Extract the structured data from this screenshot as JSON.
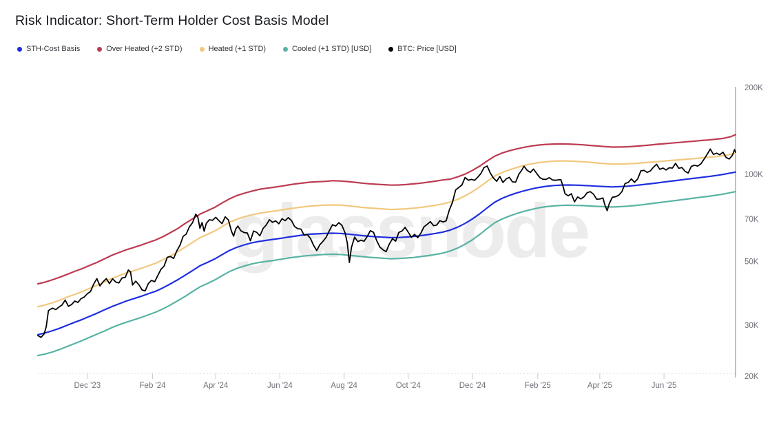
{
  "title": "Risk Indicator: Short-Term Holder Cost Basis Model",
  "watermark": "glassnode",
  "legend": {
    "items": [
      {
        "label": "STH-Cost Basis",
        "color": "#1f2fdf"
      },
      {
        "label": "Over Heated (+2 STD)",
        "color": "#bd3b52"
      },
      {
        "label": "Heated (+1 STD)",
        "color": "#f2c87e"
      },
      {
        "label": "Cooled (+1 STD) [USD]",
        "color": "#58b3a4"
      },
      {
        "label": "BTC: Price [USD]",
        "color": "#000000"
      }
    ]
  },
  "chart_data": {
    "type": "line",
    "title": "Risk Indicator: Short-Term Holder Cost Basis Model",
    "y_scale": "log",
    "y_unit": "USD",
    "ylim_thousands": [
      20,
      200
    ],
    "x_range_days": [
      0,
      663
    ],
    "x_start": "mid-Oct 2023",
    "x_end": "early Aug 2025",
    "grid": "none",
    "legend_position": "top-left",
    "x_ticks": [
      {
        "label": "Dec '23",
        "day": 47
      },
      {
        "label": "Feb '24",
        "day": 109
      },
      {
        "label": "Apr '24",
        "day": 169
      },
      {
        "label": "Jun '24",
        "day": 230
      },
      {
        "label": "Aug '24",
        "day": 291
      },
      {
        "label": "Oct '24",
        "day": 352
      },
      {
        "label": "Dec '24",
        "day": 413
      },
      {
        "label": "Feb '25",
        "day": 475
      },
      {
        "label": "Apr '25",
        "day": 534
      },
      {
        "label": "Jun '25",
        "day": 595
      }
    ],
    "y_ticks": [
      {
        "label": "20K",
        "value": 20
      },
      {
        "label": "30K",
        "value": 30
      },
      {
        "label": "50K",
        "value": 50
      },
      {
        "label": "70K",
        "value": 70
      },
      {
        "label": "100K",
        "value": 100
      },
      {
        "label": "200K",
        "value": 200
      }
    ],
    "x_weekly": [
      0,
      7,
      14,
      21,
      28,
      35,
      42,
      49,
      56,
      63,
      70,
      77,
      84,
      91,
      98,
      105,
      112,
      119,
      126,
      133,
      140,
      147,
      154,
      161,
      168,
      175,
      182,
      189,
      196,
      203,
      210,
      217,
      224,
      231,
      238,
      245,
      252,
      259,
      266,
      273,
      280,
      287,
      294,
      301,
      308,
      315,
      322,
      329,
      336,
      343,
      350,
      357,
      364,
      371,
      378,
      385,
      392,
      399,
      406,
      413,
      420,
      427,
      434,
      441,
      448,
      455,
      462,
      469,
      476,
      483,
      490,
      497,
      504,
      511,
      518,
      525,
      532,
      539,
      546,
      553,
      560,
      567,
      574,
      581,
      588,
      595,
      602,
      609,
      616,
      623,
      630,
      637,
      644,
      651,
      658,
      663
    ],
    "series": [
      {
        "name": "Over Heated (+2 STD)",
        "color": "#bd3b52",
        "width": 2.2,
        "x_ref": "x_weekly",
        "y": [
          42.0,
          42.6,
          43.4,
          44.3,
          45.3,
          46.4,
          47.4,
          48.6,
          49.8,
          51.2,
          52.7,
          53.9,
          55.1,
          56.1,
          57.2,
          58.4,
          59.6,
          61.2,
          63.2,
          65.3,
          68.0,
          70.5,
          73.2,
          75.2,
          77.3,
          80.0,
          82.7,
          84.9,
          86.5,
          87.9,
          89.2,
          90.0,
          90.7,
          91.5,
          92.4,
          93.2,
          93.9,
          94.5,
          94.8,
          95.1,
          95.6,
          95.4,
          95.0,
          94.4,
          93.8,
          93.3,
          92.9,
          92.6,
          92.3,
          92.4,
          92.7,
          93.2,
          93.8,
          94.5,
          95.3,
          96.2,
          96.8,
          98.6,
          100.8,
          103.8,
          107.5,
          111.9,
          116.2,
          119.2,
          121.4,
          123.2,
          124.8,
          126.1,
          127.1,
          127.7,
          128.1,
          128.2,
          128.1,
          127.7,
          127.3,
          126.7,
          126.1,
          125.5,
          125.0,
          125.1,
          125.3,
          125.8,
          126.4,
          127.0,
          127.8,
          128.4,
          129.1,
          129.7,
          130.4,
          131.0,
          131.7,
          132.3,
          133.1,
          134.0,
          135.7,
          138.0
        ]
      },
      {
        "name": "Heated (+1 STD)",
        "color": "#f2c87e",
        "width": 2.2,
        "x_ref": "x_weekly",
        "y": [
          35.0,
          35.5,
          36.1,
          36.9,
          37.8,
          38.6,
          39.5,
          40.5,
          41.5,
          42.6,
          43.8,
          44.8,
          45.8,
          46.6,
          47.5,
          48.5,
          49.5,
          50.9,
          52.5,
          54.3,
          56.3,
          58.4,
          60.7,
          62.3,
          64.0,
          66.3,
          68.6,
          70.3,
          71.7,
          72.8,
          73.7,
          74.4,
          75.0,
          75.6,
          76.4,
          77.0,
          77.6,
          78.1,
          78.4,
          78.7,
          78.8,
          78.7,
          78.3,
          77.8,
          77.3,
          76.9,
          76.6,
          76.3,
          76.0,
          76.2,
          76.4,
          76.8,
          77.3,
          77.9,
          78.6,
          79.5,
          80.7,
          82.4,
          84.7,
          87.6,
          91.1,
          95.2,
          99.2,
          102.0,
          104.3,
          106.2,
          108.0,
          109.4,
          110.5,
          111.2,
          111.8,
          112.0,
          111.9,
          111.6,
          111.2,
          110.7,
          110.1,
          109.6,
          109.2,
          109.2,
          109.4,
          109.7,
          110.2,
          110.7,
          111.3,
          111.8,
          112.4,
          112.9,
          113.5,
          114.0,
          114.6,
          115.2,
          115.9,
          116.8,
          118.0,
          119.1
        ]
      },
      {
        "name": "Cooled (+1 STD) [USD]",
        "color": "#58b3a4",
        "width": 2.2,
        "x_ref": "x_weekly",
        "y": [
          23.7,
          24.0,
          24.4,
          24.9,
          25.5,
          26.1,
          26.7,
          27.4,
          28.1,
          28.8,
          29.6,
          30.3,
          30.9,
          31.5,
          32.1,
          32.8,
          33.5,
          34.4,
          35.5,
          36.7,
          38.0,
          39.5,
          41.0,
          42.1,
          43.3,
          44.8,
          46.3,
          47.5,
          48.4,
          49.2,
          49.8,
          50.2,
          50.6,
          51.1,
          51.6,
          52.0,
          52.4,
          52.7,
          52.9,
          53.1,
          53.2,
          53.1,
          52.8,
          52.5,
          52.2,
          51.9,
          51.7,
          51.5,
          51.3,
          51.4,
          51.6,
          51.8,
          52.2,
          52.6,
          53.1,
          53.7,
          54.6,
          55.9,
          57.6,
          59.7,
          62.3,
          65.3,
          68.3,
          70.4,
          72.1,
          73.6,
          74.9,
          76.0,
          77.0,
          77.7,
          78.2,
          78.5,
          78.6,
          78.5,
          78.4,
          78.1,
          77.9,
          77.7,
          77.5,
          77.7,
          78.0,
          78.4,
          78.9,
          79.5,
          80.1,
          80.7,
          81.3,
          81.9,
          82.5,
          83.2,
          83.8,
          84.4,
          85.1,
          85.9,
          86.9,
          87.6
        ]
      },
      {
        "name": "STH-Cost Basis",
        "color": "#1f2fdf",
        "width": 2.2,
        "x_ref": "x_weekly",
        "y": [
          28.0,
          28.4,
          28.9,
          29.5,
          30.2,
          30.9,
          31.6,
          32.4,
          33.2,
          34.1,
          35.0,
          35.8,
          36.6,
          37.3,
          38.0,
          38.8,
          39.6,
          40.7,
          42.0,
          43.4,
          45.0,
          46.7,
          48.5,
          49.8,
          51.2,
          53.0,
          54.8,
          56.2,
          57.3,
          58.2,
          58.9,
          59.4,
          59.9,
          60.4,
          61.0,
          61.5,
          62.0,
          62.4,
          62.6,
          62.8,
          62.9,
          62.8,
          62.5,
          62.1,
          61.7,
          61.4,
          61.1,
          60.9,
          60.7,
          60.8,
          61.0,
          61.3,
          61.7,
          62.2,
          62.8,
          63.5,
          64.5,
          66.0,
          68.0,
          70.5,
          73.5,
          77.0,
          80.5,
          83.0,
          85.0,
          86.7,
          88.2,
          89.5,
          90.6,
          91.4,
          92.0,
          92.3,
          92.4,
          92.3,
          92.1,
          91.8,
          91.5,
          91.2,
          91.0,
          91.2,
          91.5,
          92.0,
          92.6,
          93.2,
          93.9,
          94.6,
          95.3,
          96.0,
          96.7,
          97.4,
          98.1,
          98.8,
          99.6,
          100.5,
          101.6,
          102.4
        ]
      },
      {
        "name": "BTC: Price [USD]",
        "color": "#000000",
        "width": 1.8,
        "x": [
          0,
          3,
          6,
          8,
          10,
          12,
          14,
          17,
          20,
          23,
          26,
          29,
          32,
          35,
          38,
          41,
          44,
          47,
          50,
          53,
          56,
          59,
          62,
          65,
          68,
          71,
          74,
          77,
          80,
          83,
          86,
          88,
          90,
          93,
          96,
          99,
          102,
          105,
          108,
          111,
          114,
          117,
          120,
          123,
          126,
          129,
          132,
          135,
          138,
          141,
          144,
          147,
          150,
          152,
          154,
          156,
          158,
          160,
          163,
          166,
          169,
          172,
          175,
          178,
          181,
          184,
          186,
          188,
          190,
          193,
          196,
          199,
          202,
          205,
          208,
          211,
          214,
          217,
          220,
          223,
          226,
          229,
          232,
          235,
          238,
          241,
          244,
          247,
          250,
          253,
          256,
          259,
          262,
          265,
          268,
          271,
          274,
          277,
          280,
          283,
          286,
          289,
          292,
          294,
          295,
          296,
          298,
          301,
          304,
          307,
          310,
          313,
          316,
          319,
          322,
          325,
          328,
          331,
          334,
          337,
          340,
          343,
          346,
          349,
          352,
          355,
          358,
          361,
          364,
          367,
          370,
          373,
          376,
          379,
          382,
          385,
          388,
          391,
          394,
          397,
          400,
          403,
          406,
          409,
          412,
          415,
          418,
          421,
          424,
          427,
          430,
          433,
          436,
          439,
          442,
          445,
          448,
          451,
          454,
          457,
          460,
          462,
          465,
          468,
          471,
          474,
          477,
          480,
          483,
          486,
          489,
          492,
          495,
          497,
          499,
          501,
          504,
          507,
          510,
          513,
          516,
          519,
          522,
          525,
          528,
          531,
          534,
          537,
          539,
          541,
          543,
          546,
          549,
          552,
          555,
          558,
          561,
          564,
          567,
          570,
          573,
          576,
          579,
          582,
          585,
          588,
          591,
          594,
          597,
          600,
          603,
          606,
          609,
          612,
          615,
          618,
          621,
          624,
          627,
          630,
          633,
          636,
          639,
          642,
          645,
          648,
          651,
          654,
          657,
          660,
          662,
          663
        ],
        "y": [
          27.8,
          27.4,
          28.2,
          29.9,
          33.9,
          34.3,
          34.6,
          34.2,
          34.9,
          35.5,
          36.9,
          35.1,
          35.6,
          36.6,
          36.2,
          37.3,
          37.8,
          38.8,
          39.5,
          41.9,
          43.8,
          41.3,
          42.7,
          43.8,
          42.1,
          43.7,
          42.6,
          42.3,
          44.0,
          44.2,
          46.9,
          46.2,
          41.6,
          42.9,
          41.7,
          40.0,
          39.7,
          42.1,
          43.2,
          42.7,
          44.9,
          47.2,
          48.4,
          51.9,
          52.2,
          51.4,
          54.6,
          57.1,
          61.3,
          62.5,
          66.2,
          68.4,
          73.2,
          71.6,
          65.4,
          68.5,
          63.9,
          68.0,
          70.0,
          69.7,
          71.4,
          69.5,
          67.9,
          71.7,
          69.9,
          63.9,
          61.4,
          65.0,
          66.6,
          64.1,
          63.2,
          63.0,
          59.2,
          64.0,
          63.3,
          61.6,
          65.3,
          67.2,
          70.0,
          68.6,
          69.4,
          67.8,
          70.6,
          69.5,
          71.2,
          69.6,
          66.3,
          65.2,
          65.0,
          61.9,
          62.2,
          60.4,
          57.1,
          54.8,
          57.4,
          59.0,
          60.9,
          64.2,
          67.3,
          66.6,
          68.4,
          66.9,
          63.0,
          58.3,
          54.0,
          49.8,
          56.1,
          61.0,
          58.8,
          59.5,
          59.0,
          61.3,
          64.2,
          63.3,
          59.2,
          56.3,
          55.1,
          54.3,
          57.7,
          60.2,
          59.0,
          63.3,
          64.0,
          65.9,
          63.4,
          60.9,
          62.3,
          60.7,
          63.0,
          66.2,
          67.5,
          69.0,
          66.8,
          67.1,
          69.5,
          68.8,
          69.4,
          75.7,
          80.5,
          88.8,
          90.6,
          92.4,
          98.1,
          96.0,
          96.6,
          95.9,
          98.4,
          101.2,
          106.2,
          107.5,
          101.5,
          97.6,
          95.2,
          98.9,
          94.3,
          97.0,
          98.2,
          94.7,
          94.5,
          100.6,
          104.2,
          107.3,
          103.8,
          102.2,
          104.9,
          101.4,
          98.0,
          96.7,
          96.6,
          98.0,
          96.2,
          95.9,
          96.3,
          96.4,
          91.6,
          86.1,
          84.8,
          86.2,
          80.8,
          84.0,
          82.7,
          84.1,
          86.9,
          87.6,
          85.9,
          82.5,
          82.6,
          83.3,
          78.5,
          75.3,
          79.7,
          83.8,
          84.1,
          85.2,
          87.6,
          93.5,
          94.3,
          97.0,
          94.4,
          97.0,
          103.4,
          103.8,
          102.2,
          103.3,
          106.5,
          109.0,
          104.7,
          105.8,
          104.1,
          106.0,
          105.7,
          109.8,
          105.6,
          106.2,
          103.1,
          101.6,
          107.2,
          108.2,
          107.4,
          109.3,
          113.4,
          117.9,
          123.1,
          117.9,
          119.1,
          117.6,
          120.0,
          115.2,
          113.7,
          117.0,
          122.5,
          120.0
        ]
      }
    ],
    "axis_colors": {
      "y_axis_line": "#54b5ac",
      "x_axis_line": "#d9d9de",
      "tick": "#c9c9ce",
      "label": "#71717a"
    }
  }
}
